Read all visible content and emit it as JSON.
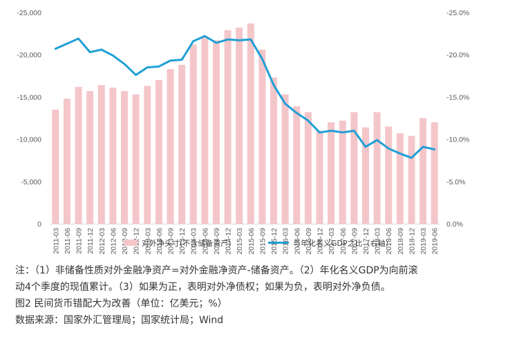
{
  "chart_data": {
    "type": "bar+line",
    "categories": [
      "2011-03",
      "2011-06",
      "2011-09",
      "2011-12",
      "2012-03",
      "2012-06",
      "2012-09",
      "2012-12",
      "2013-03",
      "2013-06",
      "2013-09",
      "2013-12",
      "2014-03",
      "2014-06",
      "2014-09",
      "2014-12",
      "2015-03",
      "2015-06",
      "2015-09",
      "2015-12",
      "2016-03",
      "2016-06",
      "2016-09",
      "2016-12",
      "2017-03",
      "2017-06",
      "2017-09",
      "2017-12",
      "2018-03",
      "2018-06",
      "2018-09",
      "2018-12",
      "2019-03",
      "2019-06"
    ],
    "series": [
      {
        "name": "对外净头寸(不含储备资产)",
        "type": "bar",
        "axis": "left",
        "color": "#f4c6ca",
        "values": [
          -13500,
          -14800,
          -16200,
          -15700,
          -16400,
          -16100,
          -15700,
          -15300,
          -16300,
          -17000,
          -18300,
          -18800,
          -21200,
          -22000,
          -21700,
          -22900,
          -23200,
          -23700,
          -20600,
          -17300,
          -15300,
          -13900,
          -13200,
          -11000,
          -12000,
          -12200,
          -13200,
          -11400,
          -13200,
          -11500,
          -10700,
          -10400,
          -12500,
          -12000
        ]
      },
      {
        "name": "与年化名义GDP之比（右轴）",
        "type": "line",
        "axis": "right",
        "color": "#1f9fd6",
        "values": [
          -20.7,
          -21.3,
          -21.9,
          -20.3,
          -20.6,
          -19.9,
          -18.9,
          -17.6,
          -18.5,
          -18.6,
          -19.3,
          -19.4,
          -21.6,
          -22.2,
          -21.4,
          -21.8,
          -21.7,
          -21.8,
          -19.5,
          -16.4,
          -14.2,
          -13.1,
          -12.2,
          -10.8,
          -11.0,
          -10.8,
          -11.0,
          -9.1,
          -9.9,
          -8.9,
          -8.3,
          -7.8,
          -9.1,
          -8.8
        ]
      }
    ],
    "left_axis": {
      "ticks": [
        "-25,000",
        "-20,000",
        "-15,000",
        "-10,000",
        "-5,000",
        "0"
      ],
      "ylim": [
        0,
        -25000
      ]
    },
    "right_axis": {
      "ticks": [
        "-25.0%",
        "-20.0%",
        "-15.0%",
        "-10.0%",
        "-5.0%",
        "0.0%"
      ],
      "ylim": [
        0,
        -25
      ]
    },
    "grid": false,
    "legend_position": "bottom"
  },
  "notes": {
    "line1": "注：（1）非储备性质对外金融净资产=对外金融净资产-储备资产。（2）年化名义GDP为向前滚",
    "line2": "动4个季度的现值累计。（3）如果为正，表明对外净债权；如果为负，表明对外净负债。",
    "caption": "图2  民间货币错配大为改善（单位：亿美元；%）",
    "source": "数据来源：国家外汇管理局；国家统计局；Wind"
  }
}
